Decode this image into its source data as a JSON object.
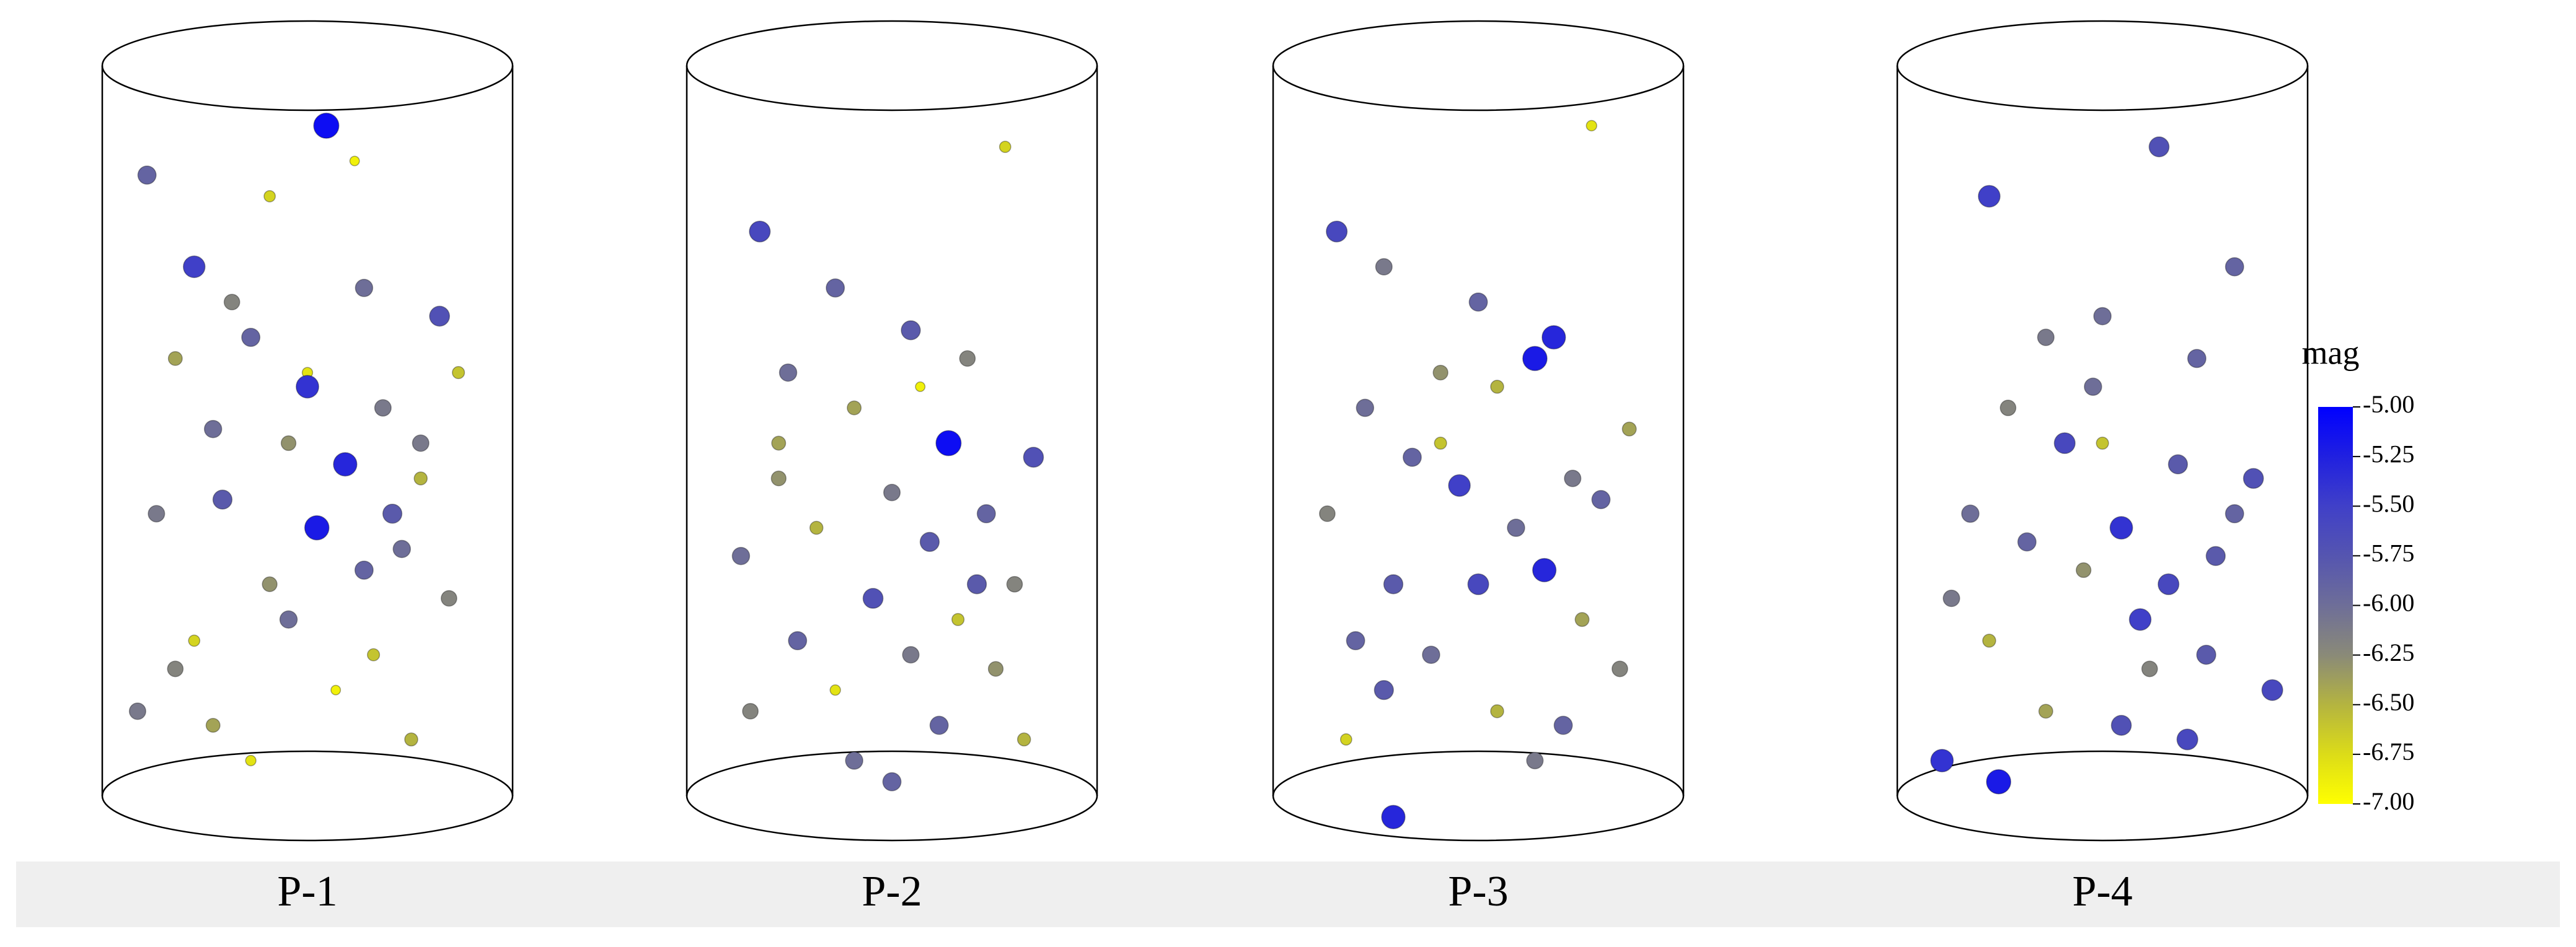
{
  "chart_data": [
    {
      "type": "scatter",
      "title": "P-1",
      "xlim": [
        -1,
        1
      ],
      "ylim": [
        0,
        1
      ],
      "x": [
        -0.85,
        -0.6,
        -0.4,
        0.1,
        0.3,
        0.7,
        -0.7,
        -0.3,
        0.0,
        0.4,
        0.8,
        -0.5,
        -0.1,
        0.2,
        0.6,
        -0.8,
        -0.45,
        0.05,
        0.5,
        -0.2,
        0.3,
        0.75,
        -0.6,
        -0.1,
        0.35,
        -0.9,
        -0.5,
        0.15,
        0.55,
        -0.3,
        -0.7,
        0.0,
        0.45,
        -0.2,
        0.25,
        0.6
      ],
      "y": [
        0.88,
        0.75,
        0.7,
        0.95,
        0.72,
        0.68,
        0.62,
        0.65,
        0.6,
        0.55,
        0.6,
        0.52,
        0.5,
        0.47,
        0.45,
        0.4,
        0.42,
        0.38,
        0.35,
        0.3,
        0.32,
        0.28,
        0.22,
        0.25,
        0.2,
        0.12,
        0.1,
        0.15,
        0.08,
        0.05,
        0.18,
        0.58,
        0.4,
        0.85,
        0.9,
        0.5
      ],
      "values": [
        -5.9,
        -5.5,
        -6.2,
        -5.1,
        -6.0,
        -5.7,
        -6.4,
        -5.9,
        -6.8,
        -6.1,
        -6.6,
        -6.0,
        -6.3,
        -5.3,
        -6.5,
        -6.1,
        -5.8,
        -5.2,
        -6.0,
        -6.3,
        -5.9,
        -6.2,
        -6.7,
        -6.0,
        -6.6,
        -6.1,
        -6.4,
        -6.9,
        -6.5,
        -6.8,
        -6.2,
        -5.4,
        -5.8,
        -6.7,
        -6.9,
        -6.1
      ]
    },
    {
      "type": "scatter",
      "title": "P-2",
      "xlim": [
        -1,
        1
      ],
      "ylim": [
        0,
        1
      ],
      "x": [
        -0.7,
        -0.3,
        0.6,
        -0.55,
        0.1,
        0.4,
        -0.2,
        0.3,
        0.75,
        -0.6,
        0.0,
        0.5,
        -0.4,
        0.2,
        -0.8,
        0.65,
        -0.1,
        0.35,
        -0.5,
        0.1,
        0.55,
        -0.3,
        -0.75,
        0.25,
        0.7,
        -0.2,
        0.45,
        -0.6,
        0.0,
        0.15
      ],
      "y": [
        0.8,
        0.72,
        0.92,
        0.6,
        0.66,
        0.62,
        0.55,
        0.5,
        0.48,
        0.45,
        0.43,
        0.4,
        0.38,
        0.36,
        0.34,
        0.3,
        0.28,
        0.25,
        0.22,
        0.2,
        0.18,
        0.15,
        0.12,
        0.1,
        0.08,
        0.05,
        0.3,
        0.5,
        0.02,
        0.58
      ],
      "values": [
        -5.6,
        -5.9,
        -6.7,
        -6.0,
        -5.8,
        -6.2,
        -6.4,
        -5.1,
        -5.7,
        -6.3,
        -6.1,
        -5.9,
        -6.5,
        -5.8,
        -6.0,
        -6.2,
        -5.7,
        -6.6,
        -5.9,
        -6.1,
        -6.3,
        -6.8,
        -6.2,
        -5.9,
        -6.5,
        -6.0,
        -5.8,
        -6.4,
        -5.9,
        -6.9
      ]
    },
    {
      "type": "scatter",
      "title": "P-3",
      "xlim": [
        -1,
        1
      ],
      "ylim": [
        0,
        1
      ],
      "x": [
        -0.75,
        0.6,
        -0.5,
        0.0,
        0.4,
        -0.2,
        0.3,
        -0.6,
        0.8,
        0.1,
        -0.35,
        0.5,
        -0.1,
        0.65,
        -0.8,
        0.2,
        -0.45,
        0.35,
        0.0,
        -0.65,
        0.55,
        -0.25,
        0.75,
        -0.5,
        0.1,
        0.45,
        -0.7,
        -0.45,
        0.3,
        -0.2
      ],
      "y": [
        0.8,
        0.95,
        0.75,
        0.7,
        0.65,
        0.6,
        0.62,
        0.55,
        0.52,
        0.58,
        0.48,
        0.45,
        0.44,
        0.42,
        0.4,
        0.38,
        0.3,
        0.32,
        0.3,
        0.22,
        0.25,
        0.2,
        0.18,
        0.15,
        0.12,
        0.1,
        0.08,
        -0.03,
        0.05,
        0.5
      ],
      "values": [
        -5.6,
        -6.8,
        -6.1,
        -5.9,
        -5.3,
        -6.3,
        -5.2,
        -6.0,
        -6.4,
        -6.5,
        -5.9,
        -6.1,
        -5.5,
        -5.9,
        -6.2,
        -6.0,
        -5.8,
        -5.3,
        -5.6,
        -5.9,
        -6.4,
        -6.0,
        -6.2,
        -5.8,
        -6.5,
        -5.9,
        -6.7,
        -5.3,
        -6.1,
        -6.6
      ]
    },
    {
      "type": "scatter",
      "title": "P-4",
      "xlim": [
        -1,
        1
      ],
      "ylim": [
        0,
        1
      ],
      "x": [
        -0.6,
        0.3,
        0.7,
        -0.3,
        0.0,
        0.5,
        -0.5,
        -0.2,
        0.4,
        0.8,
        -0.7,
        0.1,
        -0.4,
        0.6,
        -0.1,
        0.35,
        -0.8,
        -0.6,
        0.2,
        0.55,
        0.9,
        -0.3,
        0.1,
        0.45,
        -0.85,
        -0.55,
        0.25,
        -0.05,
        0.7,
        0.0
      ],
      "y": [
        0.85,
        0.92,
        0.75,
        0.65,
        0.68,
        0.62,
        0.55,
        0.5,
        0.47,
        0.45,
        0.4,
        0.38,
        0.36,
        0.34,
        0.32,
        0.3,
        0.28,
        0.22,
        0.25,
        0.2,
        0.15,
        0.12,
        0.1,
        0.08,
        0.05,
        0.02,
        0.18,
        0.58,
        0.4,
        0.5
      ],
      "values": [
        -5.5,
        -5.7,
        -5.9,
        -6.1,
        -6.0,
        -5.9,
        -6.2,
        -5.6,
        -5.8,
        -5.7,
        -6.0,
        -5.4,
        -5.9,
        -5.8,
        -6.3,
        -5.6,
        -6.1,
        -6.5,
        -5.5,
        -5.8,
        -5.6,
        -6.4,
        -5.7,
        -5.6,
        -5.4,
        -5.2,
        -6.2,
        -6.0,
        -5.9,
        -6.6
      ]
    }
  ],
  "colorbar": {
    "title": "mag",
    "lim": [
      -7,
      -5
    ],
    "ticks": [
      {
        "value": -5,
        "label": "-5.00"
      },
      {
        "value": -5.25,
        "label": "-5.25"
      },
      {
        "value": -5.5,
        "label": "-5.50"
      },
      {
        "value": -5.75,
        "label": "-5.75"
      },
      {
        "value": -6,
        "label": "-6.00"
      },
      {
        "value": -6.25,
        "label": "-6.25"
      },
      {
        "value": -6.5,
        "label": "-6.50"
      },
      {
        "value": -6.75,
        "label": "-6.75"
      },
      {
        "value": -7,
        "label": "-7.00"
      }
    ],
    "colors": [
      "#0000ff",
      "#2020e0",
      "#4040c8",
      "#5555b0",
      "#6e6e98",
      "#8a8a78",
      "#b4b440",
      "#dcdc18",
      "#ffff00"
    ]
  }
}
